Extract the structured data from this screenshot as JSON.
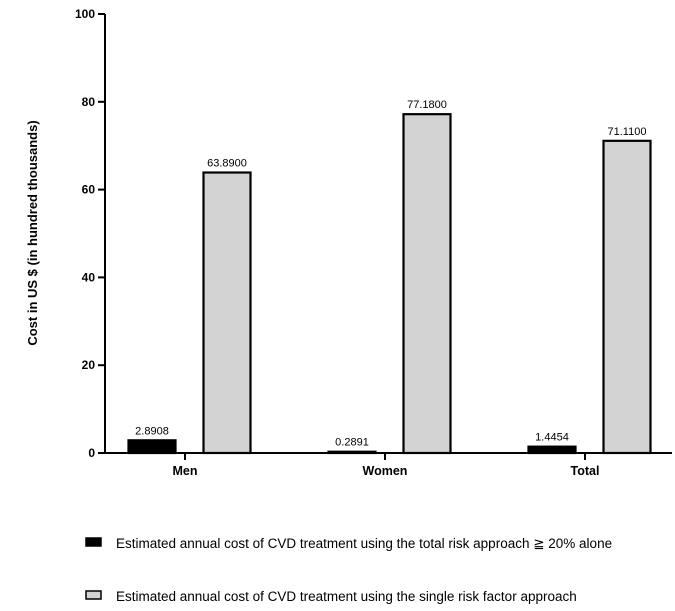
{
  "chart_data": {
    "type": "bar",
    "categories": [
      "Men",
      "Women",
      "Total"
    ],
    "series": [
      {
        "name": "Estimated annual cost of CVD treatment using the total risk approach ≧ 20% alone",
        "values": [
          2.8908,
          0.2891,
          1.4454
        ],
        "labels": [
          "2.8908",
          "0.2891",
          "1.4454"
        ],
        "color": "#000000"
      },
      {
        "name": "Estimated annual cost of CVD treatment using the single risk factor approach",
        "values": [
          63.89,
          77.18,
          71.11
        ],
        "labels": [
          "63.8900",
          "77.1800",
          "71.1100"
        ],
        "color": "#d3d3d3"
      }
    ],
    "ylabel": "Cost in US $ (in hundred thousands)",
    "xlabel": "",
    "ylim": [
      0,
      100
    ],
    "yticks": [
      0,
      20,
      40,
      60,
      80,
      100
    ],
    "grid": false,
    "legend_position": "bottom"
  }
}
